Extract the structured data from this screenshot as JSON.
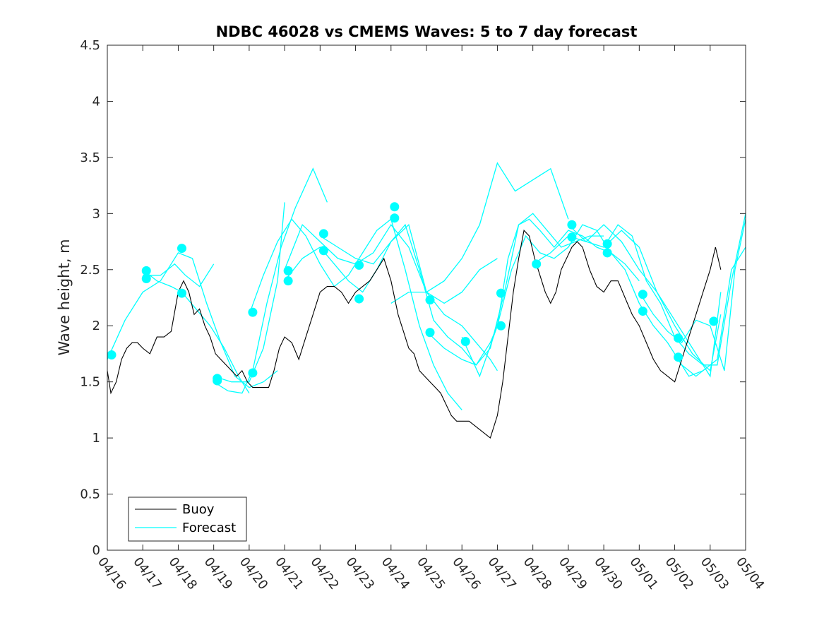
{
  "chart_data": {
    "type": "line",
    "title": "NDBC 46028 vs CMEMS Waves: 5 to 7 day forecast",
    "xlabel": "",
    "ylabel": "Wave height, m",
    "xlim": [
      "04/16",
      "05/04"
    ],
    "ylim": [
      0,
      4.5
    ],
    "y_ticks": [
      "0",
      "0.5",
      "1",
      "1.5",
      "2",
      "2.5",
      "3",
      "3.5",
      "4",
      "4.5"
    ],
    "x_ticks": [
      "04/16",
      "04/17",
      "04/18",
      "04/19",
      "04/20",
      "04/21",
      "04/22",
      "04/23",
      "04/24",
      "04/25",
      "04/26",
      "04/27",
      "04/28",
      "04/29",
      "04/30",
      "05/01",
      "05/02",
      "05/03",
      "05/04"
    ],
    "grid": false,
    "legend_position": "bottom-left",
    "colors": {
      "buoy": "#000000",
      "forecast": "#00ffff"
    },
    "series": [
      {
        "name": "Buoy",
        "style": "line",
        "x": [
          0.0,
          0.1,
          0.25,
          0.4,
          0.55,
          0.7,
          0.85,
          1.0,
          1.2,
          1.4,
          1.6,
          1.8,
          2.0,
          2.15,
          2.3,
          2.45,
          2.6,
          2.75,
          2.9,
          3.05,
          3.2,
          3.35,
          3.5,
          3.65,
          3.8,
          3.95,
          4.1,
          4.25,
          4.4,
          4.55,
          4.7,
          4.85,
          5.0,
          5.2,
          5.4,
          5.6,
          5.8,
          6.0,
          6.2,
          6.4,
          6.6,
          6.8,
          7.0,
          7.2,
          7.4,
          7.6,
          7.8,
          8.0,
          8.2,
          8.35,
          8.5,
          8.65,
          8.8,
          8.95,
          9.1,
          9.25,
          9.4,
          9.55,
          9.7,
          9.85,
          10.0,
          10.2,
          10.4,
          10.6,
          10.8,
          11.0,
          11.15,
          11.3,
          11.45,
          11.6,
          11.75,
          11.9,
          12.05,
          12.2,
          12.35,
          12.5,
          12.65,
          12.8,
          12.95,
          13.1,
          13.25,
          13.4,
          13.6,
          13.8,
          14.0,
          14.2,
          14.4,
          14.6,
          14.8,
          15.0,
          15.2,
          15.4,
          15.6,
          15.8,
          16.0,
          16.2,
          16.4,
          16.6,
          16.8,
          17.0,
          17.15,
          17.3
        ],
        "y": [
          1.6,
          1.4,
          1.5,
          1.7,
          1.8,
          1.85,
          1.85,
          1.8,
          1.75,
          1.9,
          1.9,
          1.95,
          2.3,
          2.4,
          2.3,
          2.1,
          2.15,
          2.0,
          1.9,
          1.75,
          1.7,
          1.65,
          1.6,
          1.55,
          1.6,
          1.5,
          1.45,
          1.45,
          1.45,
          1.45,
          1.6,
          1.8,
          1.9,
          1.85,
          1.7,
          1.9,
          2.1,
          2.3,
          2.35,
          2.35,
          2.3,
          2.2,
          2.3,
          2.35,
          2.4,
          2.5,
          2.6,
          2.4,
          2.1,
          1.95,
          1.8,
          1.75,
          1.6,
          1.55,
          1.5,
          1.45,
          1.4,
          1.3,
          1.2,
          1.15,
          1.15,
          1.15,
          1.1,
          1.05,
          1.0,
          1.2,
          1.5,
          1.9,
          2.3,
          2.6,
          2.85,
          2.8,
          2.6,
          2.45,
          2.3,
          2.2,
          2.3,
          2.5,
          2.6,
          2.7,
          2.75,
          2.7,
          2.5,
          2.35,
          2.3,
          2.4,
          2.4,
          2.25,
          2.1,
          2.0,
          1.85,
          1.7,
          1.6,
          1.55,
          1.5,
          1.7,
          1.9,
          2.1,
          2.3,
          2.5,
          2.7,
          2.5
        ]
      },
      {
        "name": "Forecast",
        "style": "line",
        "runs": [
          {
            "x": [
              0.0,
              0.5,
              1.0,
              1.5,
              2.0,
              2.4,
              2.8,
              3.2,
              3.6,
              4.0,
              4.4,
              4.8
            ],
            "y": [
              1.7,
              2.05,
              2.3,
              2.4,
              2.65,
              2.6,
              2.2,
              1.85,
              1.55,
              1.45,
              1.5,
              1.6
            ]
          },
          {
            "x": [
              1.0,
              1.4,
              1.8,
              2.1,
              2.5,
              2.9,
              3.3,
              3.7,
              4.0
            ],
            "y": [
              2.5,
              2.4,
              2.35,
              2.3,
              2.15,
              2.0,
              1.8,
              1.55,
              1.4
            ]
          },
          {
            "x": [
              1.0,
              1.5,
              1.9,
              2.2,
              2.6,
              3.0
            ],
            "y": [
              2.45,
              2.45,
              2.55,
              2.45,
              2.35,
              2.55
            ]
          },
          {
            "x": [
              3.0,
              3.4,
              3.8,
              4.1,
              4.5,
              4.9,
              5.3,
              5.8,
              6.2
            ],
            "y": [
              1.5,
              1.42,
              1.4,
              1.6,
              2.2,
              2.7,
              3.05,
              3.4,
              3.1
            ]
          },
          {
            "x": [
              3.0,
              3.5,
              4.0,
              4.4,
              4.8,
              5.0
            ],
            "y": [
              1.55,
              1.5,
              1.5,
              1.8,
              2.4,
              3.1
            ]
          },
          {
            "x": [
              4.0,
              4.4,
              4.8,
              5.2,
              5.6,
              6.0,
              6.4,
              6.8,
              7.2,
              7.6,
              8.0,
              8.4,
              8.8,
              9.2,
              9.6,
              10.0
            ],
            "y": [
              2.1,
              2.45,
              2.75,
              2.95,
              2.8,
              2.55,
              2.35,
              2.45,
              2.65,
              2.85,
              2.95,
              2.5,
              2.0,
              1.65,
              1.4,
              1.25
            ]
          },
          {
            "x": [
              5.0,
              5.5,
              6.0,
              6.4,
              6.8,
              7.2,
              7.6,
              8.0,
              8.4,
              8.8,
              9.2,
              9.6,
              10.0,
              10.4,
              10.8,
              11.0
            ],
            "y": [
              2.4,
              2.6,
              2.7,
              2.55,
              2.4,
              2.3,
              2.5,
              2.75,
              2.9,
              2.5,
              2.05,
              1.9,
              1.8,
              1.65,
              1.85,
              2.0
            ]
          },
          {
            "x": [
              5.0,
              5.5,
              6.0,
              6.5,
              7.0,
              7.5,
              8.0,
              8.5,
              9.0,
              9.5,
              10.0,
              10.4,
              10.8,
              11.0
            ],
            "y": [
              2.5,
              2.9,
              2.75,
              2.6,
              2.55,
              2.65,
              2.9,
              2.7,
              2.3,
              2.1,
              2.0,
              1.85,
              1.7,
              1.6
            ]
          },
          {
            "x": [
              6.0,
              6.5,
              7.0,
              7.5,
              8.0,
              8.5,
              9.0,
              9.5,
              10.0,
              10.5,
              11.0
            ],
            "y": [
              2.8,
              2.7,
              2.6,
              2.55,
              2.75,
              2.9,
              2.3,
              2.2,
              2.3,
              2.5,
              2.6
            ]
          },
          {
            "x": [
              8.0,
              8.5,
              9.0,
              9.5,
              10.0,
              10.5,
              11.0,
              11.5,
              12.0,
              12.5,
              13.0
            ],
            "y": [
              2.2,
              2.3,
              2.3,
              2.4,
              2.6,
              2.9,
              3.45,
              3.2,
              3.3,
              3.4,
              2.95
            ]
          },
          {
            "x": [
              9.0,
              9.5,
              10.0,
              10.4,
              10.8,
              11.2,
              11.6,
              12.0,
              12.4,
              12.8,
              13.2,
              13.6,
              14.0
            ],
            "y": [
              1.95,
              1.8,
              1.7,
              1.65,
              1.8,
              2.3,
              2.9,
              3.0,
              2.85,
              2.7,
              2.75,
              2.8,
              2.8
            ]
          },
          {
            "x": [
              10.0,
              10.5,
              11.0,
              11.3,
              11.6,
              11.9,
              12.2,
              12.6,
              13.0,
              13.4,
              13.8,
              14.2,
              14.6,
              15.0
            ],
            "y": [
              1.9,
              1.55,
              2.0,
              2.6,
              2.9,
              2.95,
              2.85,
              2.7,
              2.85,
              2.8,
              2.7,
              2.65,
              2.55,
              2.4
            ]
          },
          {
            "x": [
              11.0,
              11.4,
              11.8,
              12.2,
              12.6,
              13.0,
              13.4,
              13.8,
              14.2,
              14.6,
              15.0,
              15.4,
              15.8,
              16.2,
              16.6,
              17.0
            ],
            "y": [
              2.0,
              2.5,
              2.8,
              2.65,
              2.6,
              2.7,
              2.9,
              2.85,
              2.65,
              2.5,
              2.2,
              2.0,
              1.85,
              1.65,
              1.55,
              1.65
            ]
          },
          {
            "x": [
              12.0,
              12.5,
              13.0,
              13.5,
              14.0,
              14.5,
              15.0,
              15.5,
              16.0,
              16.5,
              17.0,
              17.3
            ],
            "y": [
              2.55,
              2.65,
              2.8,
              2.75,
              2.9,
              2.75,
              2.5,
              2.3,
              2.05,
              1.8,
              1.55,
              2.3
            ]
          },
          {
            "x": [
              13.0,
              13.5,
              14.0,
              14.5,
              15.0,
              15.5,
              16.0,
              16.5,
              17.0,
              17.3
            ],
            "y": [
              2.9,
              2.75,
              2.7,
              2.85,
              2.7,
              2.3,
              2.0,
              1.75,
              1.6,
              2.1
            ]
          },
          {
            "x": [
              14.0,
              14.4,
              14.8,
              15.2,
              15.6,
              16.0,
              16.4,
              16.8,
              17.2,
              17.6,
              18.0
            ],
            "y": [
              2.7,
              2.9,
              2.8,
              2.4,
              2.2,
              1.9,
              1.75,
              1.65,
              1.65,
              2.4,
              3.0
            ]
          },
          {
            "x": [
              15.0,
              15.4,
              15.8,
              16.2,
              16.6,
              17.0,
              17.4,
              17.7,
              18.0
            ],
            "y": [
              2.3,
              2.1,
              1.95,
              1.85,
              2.05,
              2.0,
              1.6,
              2.5,
              2.95
            ]
          },
          {
            "x": [
              16.0,
              16.4,
              16.8,
              17.2,
              17.6,
              18.0
            ],
            "y": [
              1.75,
              1.55,
              1.6,
              1.7,
              2.5,
              2.7
            ]
          }
        ]
      },
      {
        "name": "",
        "style": "markers",
        "x": [
          0.12,
          1.1,
          1.1,
          2.1,
          2.1,
          3.1,
          3.1,
          4.1,
          4.1,
          5.1,
          5.1,
          6.1,
          6.1,
          7.1,
          7.1,
          8.1,
          8.1,
          9.1,
          9.1,
          10.1,
          11.1,
          11.1,
          12.1,
          13.1,
          13.1,
          14.1,
          14.1,
          15.1,
          15.1,
          16.1,
          16.1,
          17.1
        ],
        "y": [
          1.74,
          2.49,
          2.42,
          2.69,
          2.29,
          1.53,
          1.51,
          2.12,
          1.58,
          2.49,
          2.4,
          2.82,
          2.67,
          2.54,
          2.24,
          3.06,
          2.96,
          2.23,
          1.94,
          1.86,
          2.29,
          2.0,
          2.55,
          2.9,
          2.79,
          2.73,
          2.65,
          2.28,
          2.13,
          1.89,
          1.72,
          2.04
        ]
      }
    ]
  }
}
